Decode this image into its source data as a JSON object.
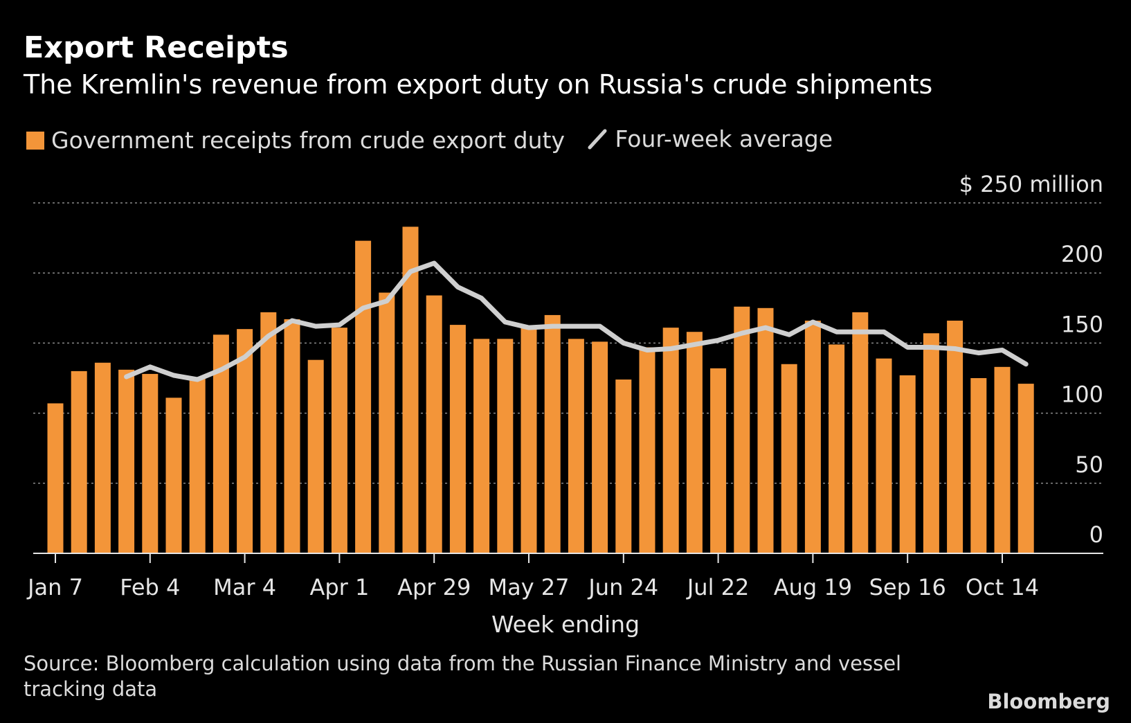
{
  "title": "Export Receipts",
  "subtitle": "The Kremlin's revenue from export duty on Russia's crude shipments",
  "legend": {
    "bars_label": "Government receipts from crude export duty",
    "line_label": "Four-week average"
  },
  "source": "Source: Bloomberg calculation using data from the Russian Finance Ministry and vessel tracking data",
  "logo": "Bloomberg",
  "colors": {
    "bar": "#f39539",
    "line": "#cfcfcf",
    "background": "#000000"
  },
  "chart_data": {
    "type": "bar",
    "xlabel": "Week ending",
    "ylabel": "$ 250 million",
    "ylim": [
      0,
      250
    ],
    "y_ticks": [
      0,
      50,
      100,
      150,
      200,
      250
    ],
    "y_tick_labels": [
      "0",
      "50",
      "100",
      "150",
      "200",
      "$ 250 million"
    ],
    "grid": true,
    "x_tick_labels": [
      "Jan 7",
      "Feb 4",
      "Mar 4",
      "Apr 1",
      "Apr 29",
      "May 27",
      "Jun 24",
      "Jul 22",
      "Aug 19",
      "Sep 16",
      "Oct 14"
    ],
    "x_tick_every": 4,
    "series": [
      {
        "name": "Government receipts from crude export duty",
        "type": "bar",
        "values": [
          107,
          130,
          136,
          131,
          128,
          111,
          125,
          156,
          160,
          172,
          167,
          138,
          161,
          223,
          186,
          233,
          184,
          163,
          153,
          153,
          162,
          170,
          153,
          151,
          124,
          147,
          161,
          158,
          132,
          176,
          175,
          135,
          166,
          149,
          172,
          139,
          127,
          157,
          166,
          125,
          133,
          121
        ]
      },
      {
        "name": "Four-week average",
        "type": "line",
        "start_index": 3,
        "values": [
          126,
          133,
          127,
          124,
          131,
          140,
          155,
          166,
          162,
          163,
          175,
          180,
          201,
          207,
          190,
          182,
          165,
          161,
          162,
          162,
          162,
          150,
          145,
          146,
          149,
          152,
          157,
          161,
          156,
          165,
          158,
          158,
          158,
          147,
          147,
          146,
          143,
          145,
          135
        ]
      }
    ]
  }
}
